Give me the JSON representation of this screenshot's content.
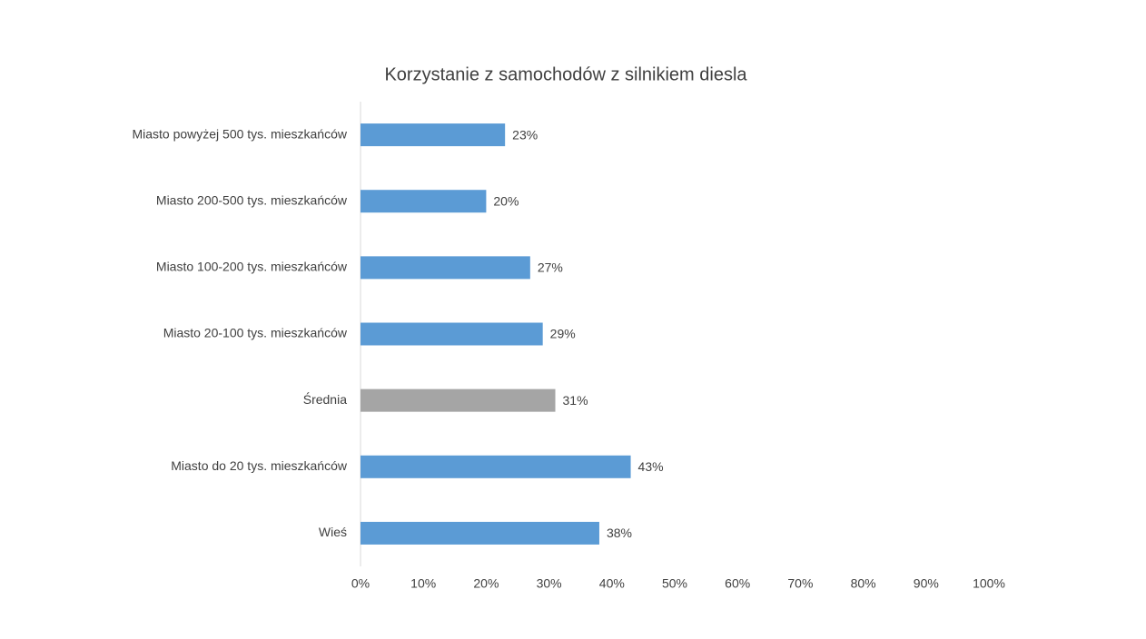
{
  "chart_data": {
    "type": "bar",
    "orientation": "horizontal",
    "title": "Korzystanie z samochodów z silnikiem diesla",
    "categories": [
      "Miasto powyżej 500 tys. mieszkańców",
      "Miasto 200-500 tys. mieszkańców",
      "Miasto 100-200 tys. mieszkańców",
      "Miasto 20-100 tys. mieszkańców",
      "Średnia",
      "Miasto do 20 tys. mieszkańców",
      "Wieś"
    ],
    "values": [
      23,
      20,
      27,
      29,
      31,
      43,
      38
    ],
    "value_labels": [
      "23%",
      "20%",
      "27%",
      "29%",
      "31%",
      "43%",
      "38%"
    ],
    "colors": [
      "#5b9bd5",
      "#5b9bd5",
      "#5b9bd5",
      "#5b9bd5",
      "#a5a5a5",
      "#5b9bd5",
      "#5b9bd5"
    ],
    "xlim": [
      0,
      100
    ],
    "xticks": [
      {
        "value": 0,
        "label": "0%"
      },
      {
        "value": 10,
        "label": "10%"
      },
      {
        "value": 20,
        "label": "20%"
      },
      {
        "value": 30,
        "label": "30%"
      },
      {
        "value": 40,
        "label": "40%"
      },
      {
        "value": 50,
        "label": "50%"
      },
      {
        "value": 60,
        "label": "60%"
      },
      {
        "value": 70,
        "label": "70%"
      },
      {
        "value": 80,
        "label": "80%"
      },
      {
        "value": 90,
        "label": "90%"
      },
      {
        "value": 100,
        "label": "100%"
      }
    ],
    "grid": false
  }
}
